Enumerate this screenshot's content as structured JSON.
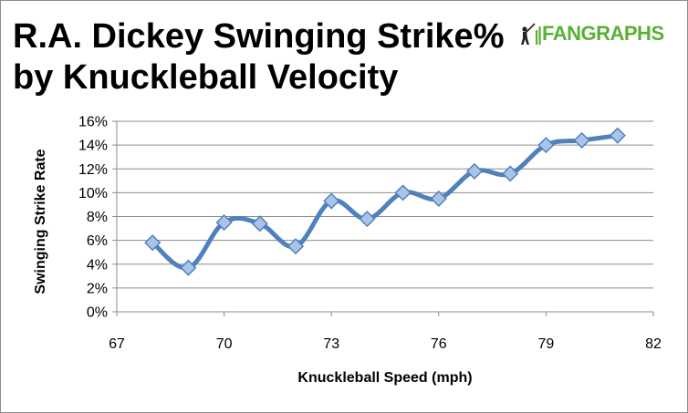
{
  "title": {
    "line1": "R.A. Dickey Swinging Strike%",
    "line2": "by Knuckleball Velocity"
  },
  "logo": {
    "text_fan": "FAN",
    "text_graphs": "GRAPHS",
    "icon": "batter-icon",
    "color": "#5aaf36"
  },
  "colors": {
    "series": "#4f81bd",
    "grid": "#8c8c8c"
  },
  "chart_data": {
    "type": "line",
    "xlabel": "Knuckleball Speed (mph)",
    "ylabel": "Swinging Strike Rate",
    "xlim": [
      67,
      82
    ],
    "ylim": [
      0,
      16
    ],
    "x_ticks": [
      67,
      70,
      73,
      76,
      79,
      82
    ],
    "x_tick_labels": [
      "67",
      "70",
      "73",
      "76",
      "79",
      "82"
    ],
    "y_ticks": [
      0,
      2,
      4,
      6,
      8,
      10,
      12,
      14,
      16
    ],
    "y_tick_labels": [
      "0%",
      "2%",
      "4%",
      "6%",
      "8%",
      "10%",
      "12%",
      "14%",
      "16%"
    ],
    "grid": true,
    "legend": "none",
    "marker": "diamond",
    "series": [
      {
        "x": [
          68,
          69,
          70,
          71,
          72,
          73,
          74,
          75,
          76,
          77,
          78,
          79,
          80,
          81
        ],
        "values": [
          5.8,
          3.7,
          7.5,
          7.4,
          5.5,
          9.3,
          7.8,
          10.0,
          9.5,
          11.8,
          11.6,
          14.0,
          14.4,
          14.8
        ]
      }
    ]
  }
}
